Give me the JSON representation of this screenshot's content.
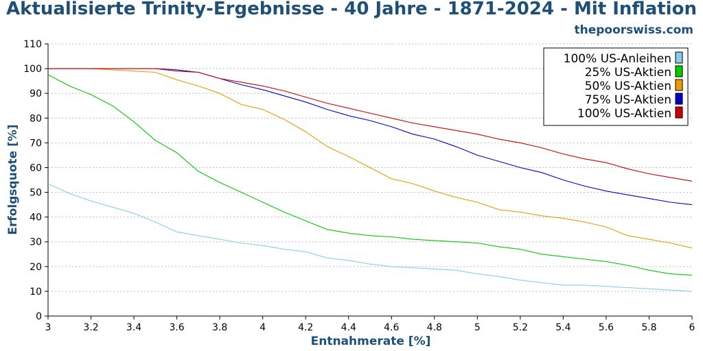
{
  "header": {
    "title": "Aktualisierte Trinity-Ergebnisse - 40 Jahre - 1871-2024 - Mit Inflation",
    "brand": "thepoorswiss.com"
  },
  "chart_data": {
    "type": "line",
    "title": "Aktualisierte Trinity-Ergebnisse - 40 Jahre - 1871-2024 - Mit Inflation",
    "xlabel": "Entnahmerate [%]",
    "ylabel": "Erfolgsquote [%]",
    "xlim": [
      3,
      6
    ],
    "ylim": [
      0,
      110
    ],
    "xticks": [
      "3",
      "3.2",
      "3.4",
      "3.6",
      "3.8",
      "4",
      "4.2",
      "4.4",
      "4.6",
      "4.8",
      "5",
      "5.2",
      "5.4",
      "5.6",
      "5.8",
      "6"
    ],
    "yticks": [
      "0",
      "10",
      "20",
      "30",
      "40",
      "50",
      "60",
      "70",
      "80",
      "90",
      "100",
      "110"
    ],
    "grid": "horizontal-dotted",
    "legend_position": "top-right",
    "x": [
      3.0,
      3.1,
      3.2,
      3.3,
      3.4,
      3.5,
      3.6,
      3.7,
      3.8,
      3.9,
      4.0,
      4.1,
      4.2,
      4.3,
      4.4,
      4.5,
      4.6,
      4.7,
      4.8,
      4.9,
      5.0,
      5.1,
      5.2,
      5.3,
      5.4,
      5.5,
      5.6,
      5.7,
      5.8,
      5.9,
      6.0
    ],
    "series": [
      {
        "name": "100% US-Anleihen",
        "color": "#87ceeb",
        "values": [
          53.5,
          49.5,
          46.5,
          44,
          41.5,
          38,
          34,
          32.5,
          31,
          29.5,
          28.5,
          27,
          26,
          23.5,
          22.5,
          21,
          20,
          19.5,
          19,
          18.5,
          17,
          16,
          14.5,
          13.5,
          12.5,
          12.5,
          12,
          11.5,
          11,
          10.5,
          10
        ]
      },
      {
        "name": "25% US-Aktien",
        "color": "#00cc00",
        "values": [
          97.5,
          93,
          89.5,
          85,
          78.5,
          71,
          66,
          58.5,
          54,
          50,
          46,
          42,
          38.5,
          35,
          33.5,
          32.5,
          32,
          31,
          30.5,
          30,
          29.5,
          28,
          27,
          25,
          24,
          23,
          22,
          20.5,
          18.5,
          17,
          16.5
        ]
      },
      {
        "name": "50% US-Aktien",
        "color": "#ee9a00",
        "values": [
          100,
          100,
          100,
          99.5,
          99,
          98.5,
          95.5,
          93,
          90,
          85.5,
          83.5,
          79.5,
          74.5,
          68.5,
          64.5,
          60,
          55.5,
          53.5,
          50.5,
          48,
          46,
          43,
          42,
          40.5,
          39.5,
          38,
          36,
          32.5,
          31,
          29.5,
          27.5
        ]
      },
      {
        "name": "75% US-Aktien",
        "color": "#0000cc",
        "values": [
          100,
          100,
          100,
          100,
          100,
          100,
          99.5,
          98.5,
          96,
          93.5,
          91.5,
          89,
          86.5,
          83.5,
          81,
          79,
          76.5,
          73.5,
          71.5,
          68.5,
          65,
          62.5,
          60,
          58,
          55,
          52.5,
          50.5,
          49,
          47.5,
          46,
          45
        ]
      },
      {
        "name": "100% US-Aktien",
        "color": "#cc0000",
        "values": [
          100,
          100,
          100,
          100,
          100,
          100,
          99,
          98.5,
          96,
          94.5,
          93,
          91,
          88.5,
          86,
          84,
          82,
          80,
          78,
          76.5,
          75,
          73.5,
          71.5,
          70,
          68,
          65.5,
          63.5,
          62,
          59.5,
          57.5,
          56,
          54.5
        ]
      }
    ]
  }
}
